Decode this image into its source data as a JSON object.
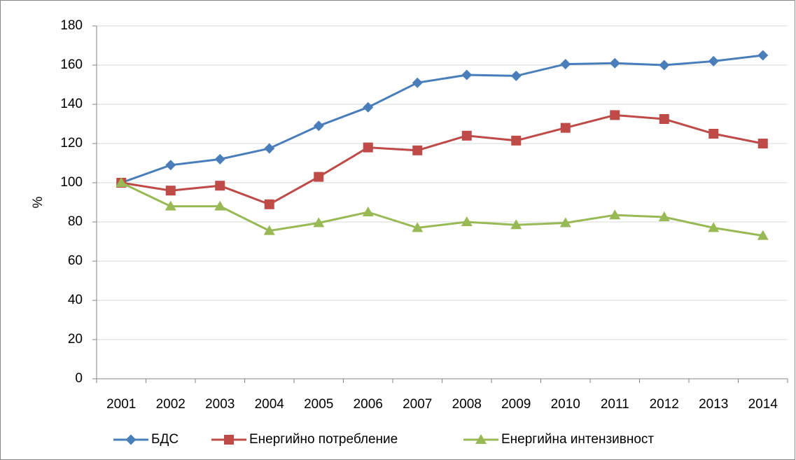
{
  "chart_data": {
    "type": "line",
    "y_label": "%",
    "categories": [
      "2001",
      "2002",
      "2003",
      "2004",
      "2005",
      "2006",
      "2007",
      "2008",
      "2009",
      "2010",
      "2011",
      "2012",
      "2013",
      "2014"
    ],
    "series": [
      {
        "name": "БДС",
        "color": "#4a7ebb",
        "marker": "diamond",
        "values": [
          100,
          109,
          112,
          117.5,
          129,
          138.5,
          151,
          155,
          154.5,
          160.5,
          161,
          160,
          162,
          165
        ]
      },
      {
        "name": "Енергийно потребление",
        "color": "#be4b48",
        "marker": "square",
        "values": [
          100,
          96,
          98.5,
          89,
          103,
          118,
          116.5,
          124,
          121.5,
          128,
          134.5,
          132.5,
          125,
          120
        ]
      },
      {
        "name": "Енергийна интензивност",
        "color": "#98b954",
        "marker": "triangle",
        "values": [
          100,
          88,
          88,
          75.5,
          79.5,
          85,
          77,
          80,
          78.5,
          79.5,
          83.5,
          82.5,
          77,
          73
        ]
      }
    ],
    "ylim": [
      0,
      180
    ],
    "yticks": [
      0,
      20,
      40,
      60,
      80,
      100,
      120,
      140,
      160,
      180
    ],
    "grid": true,
    "legend": "bottom"
  }
}
